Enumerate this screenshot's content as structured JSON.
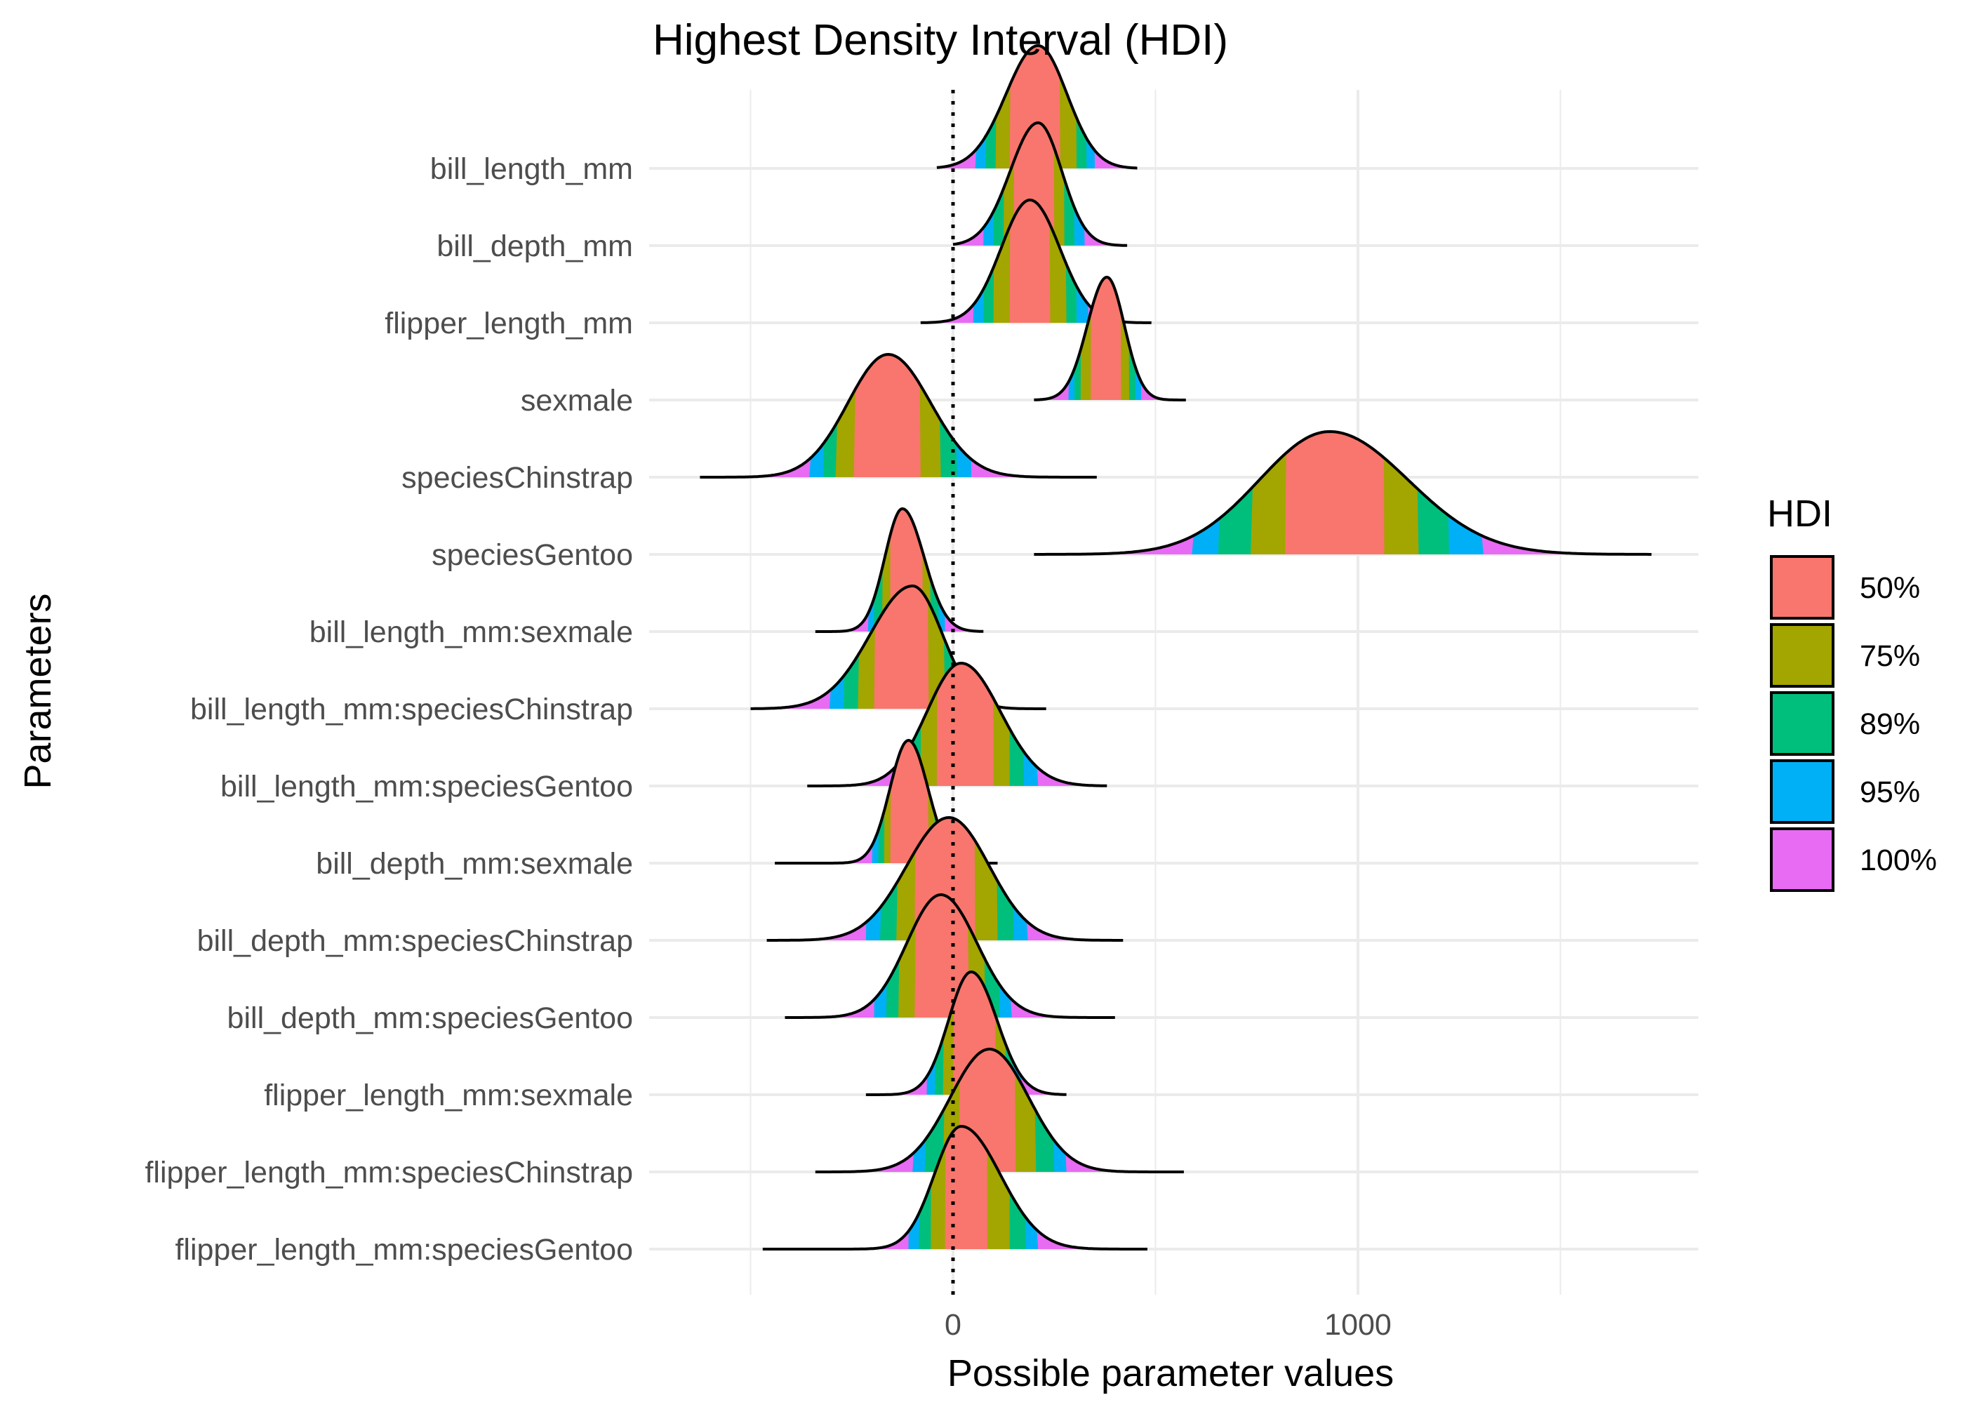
{
  "chart_data": {
    "type": "ridgeline",
    "title": "Highest Density Interval (HDI)",
    "xlabel": "Possible parameter values",
    "ylabel": "Parameters",
    "x_ticks": [
      0,
      1000
    ],
    "xlim": [
      -750,
      1850
    ],
    "grid": true,
    "reference_line": {
      "x": 0,
      "style": "dotted"
    },
    "legend": {
      "title": "HDI",
      "position": "right",
      "items": [
        {
          "label": "50%",
          "color": "#F8766D"
        },
        {
          "label": "75%",
          "color": "#A3A500"
        },
        {
          "label": "89%",
          "color": "#00BF7D"
        },
        {
          "label": "95%",
          "color": "#00B0F6"
        },
        {
          "label": "100%",
          "color": "#E76BF3"
        }
      ]
    },
    "series": [
      {
        "name": "bill_length_mm",
        "hdi": [
          [
            140,
            265
          ],
          [
            105,
            305
          ],
          [
            80,
            330
          ],
          [
            55,
            350
          ],
          [
            -40,
            455
          ]
        ],
        "peak": 210
      },
      {
        "name": "bill_depth_mm",
        "hdi": [
          [
            150,
            250
          ],
          [
            125,
            275
          ],
          [
            100,
            300
          ],
          [
            75,
            325
          ],
          [
            0,
            430
          ]
        ],
        "peak": 210
      },
      {
        "name": "flipper_length_mm",
        "hdi": [
          [
            140,
            240
          ],
          [
            100,
            280
          ],
          [
            75,
            305
          ],
          [
            50,
            335
          ],
          [
            -80,
            490
          ]
        ],
        "peak": 190
      },
      {
        "name": "sexmale",
        "hdi": [
          [
            340,
            415
          ],
          [
            315,
            435
          ],
          [
            300,
            450
          ],
          [
            285,
            465
          ],
          [
            200,
            575
          ]
        ],
        "peak": 380
      },
      {
        "name": "speciesChinstrap",
        "hdi": [
          [
            -245,
            -80
          ],
          [
            -290,
            -30
          ],
          [
            -320,
            10
          ],
          [
            -355,
            45
          ],
          [
            -625,
            355
          ]
        ],
        "peak": -160
      },
      {
        "name": "speciesGentoo",
        "hdi": [
          [
            820,
            1065
          ],
          [
            735,
            1150
          ],
          [
            655,
            1225
          ],
          [
            590,
            1310
          ],
          [
            200,
            1725
          ]
        ],
        "peak": 930
      },
      {
        "name": "bill_length_mm:sexmale",
        "hdi": [
          [
            -155,
            -75
          ],
          [
            -175,
            -55
          ],
          [
            -195,
            -35
          ],
          [
            -210,
            -20
          ],
          [
            -340,
            75
          ]
        ],
        "peak": -125
      },
      {
        "name": "bill_length_mm:speciesChinstrap",
        "hdi": [
          [
            -195,
            -60
          ],
          [
            -235,
            -20
          ],
          [
            -270,
            10
          ],
          [
            -305,
            45
          ],
          [
            -500,
            230
          ]
        ],
        "peak": -100
      },
      {
        "name": "bill_length_mm:speciesGentoo",
        "hdi": [
          [
            -40,
            100
          ],
          [
            -80,
            140
          ],
          [
            -115,
            175
          ],
          [
            -145,
            210
          ],
          [
            -360,
            380
          ]
        ],
        "peak": 20
      },
      {
        "name": "bill_depth_mm:sexmale",
        "hdi": [
          [
            -155,
            -60
          ],
          [
            -170,
            -45
          ],
          [
            -185,
            -30
          ],
          [
            -200,
            -15
          ],
          [
            -440,
            110
          ]
        ],
        "peak": -110
      },
      {
        "name": "bill_depth_mm:speciesChinstrap",
        "hdi": [
          [
            -95,
            55
          ],
          [
            -140,
            110
          ],
          [
            -180,
            150
          ],
          [
            -215,
            185
          ],
          [
            -460,
            420
          ]
        ],
        "peak": -10
      },
      {
        "name": "bill_depth_mm:speciesGentoo",
        "hdi": [
          [
            -95,
            40
          ],
          [
            -135,
            80
          ],
          [
            -165,
            115
          ],
          [
            -195,
            145
          ],
          [
            -415,
            400
          ]
        ],
        "peak": -30
      },
      {
        "name": "flipper_length_mm:sexmale",
        "hdi": [
          [
            0,
            105
          ],
          [
            -25,
            130
          ],
          [
            -45,
            150
          ],
          [
            -65,
            170
          ],
          [
            -215,
            280
          ]
        ],
        "peak": 45
      },
      {
        "name": "flipper_length_mm:speciesChinstrap",
        "hdi": [
          [
            15,
            155
          ],
          [
            -25,
            205
          ],
          [
            -70,
            250
          ],
          [
            -100,
            280
          ],
          [
            -340,
            570
          ]
        ],
        "peak": 90
      },
      {
        "name": "flipper_length_mm:speciesGentoo",
        "hdi": [
          [
            -20,
            85
          ],
          [
            -55,
            140
          ],
          [
            -85,
            180
          ],
          [
            -110,
            210
          ],
          [
            -470,
            480
          ]
        ],
        "peak": 20
      }
    ]
  }
}
